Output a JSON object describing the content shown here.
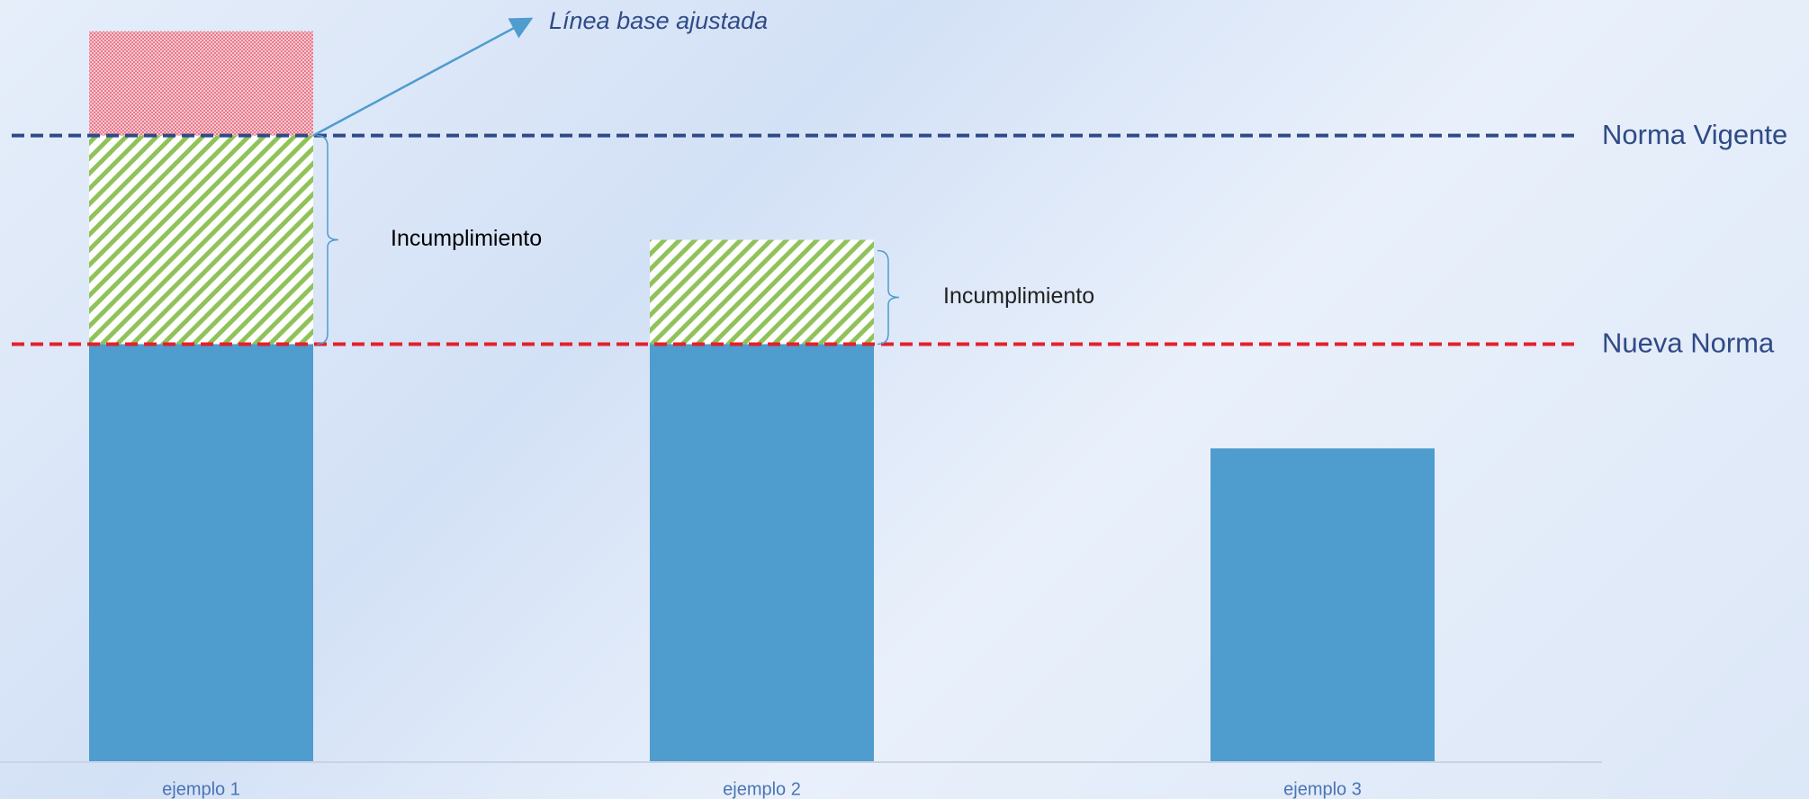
{
  "chart_data": {
    "type": "stacked-bar",
    "categories": [
      "ejemplo 1",
      "ejemplo 2",
      "ejemplo 3"
    ],
    "series": [
      {
        "color": "#4f9cce",
        "pattern": "solid",
        "values": [
          4,
          4,
          3
        ]
      },
      {
        "color": "#8fc35a",
        "pattern": "stripes",
        "values": [
          2,
          1,
          0
        ]
      },
      {
        "color": "#e87a8c",
        "pattern": "dots",
        "values": [
          1,
          0,
          0
        ]
      }
    ],
    "ylim": [
      0,
      7.3
    ],
    "reference_lines": [
      {
        "label": "Norma Vigente",
        "value": 6,
        "color": "#2f4a86"
      },
      {
        "label": "Nueva Norma",
        "value": 4,
        "color": "#e3202a"
      }
    ],
    "annotations": [
      "Línea base ajustada",
      "Incumplimiento",
      "Incumplimiento"
    ]
  }
}
